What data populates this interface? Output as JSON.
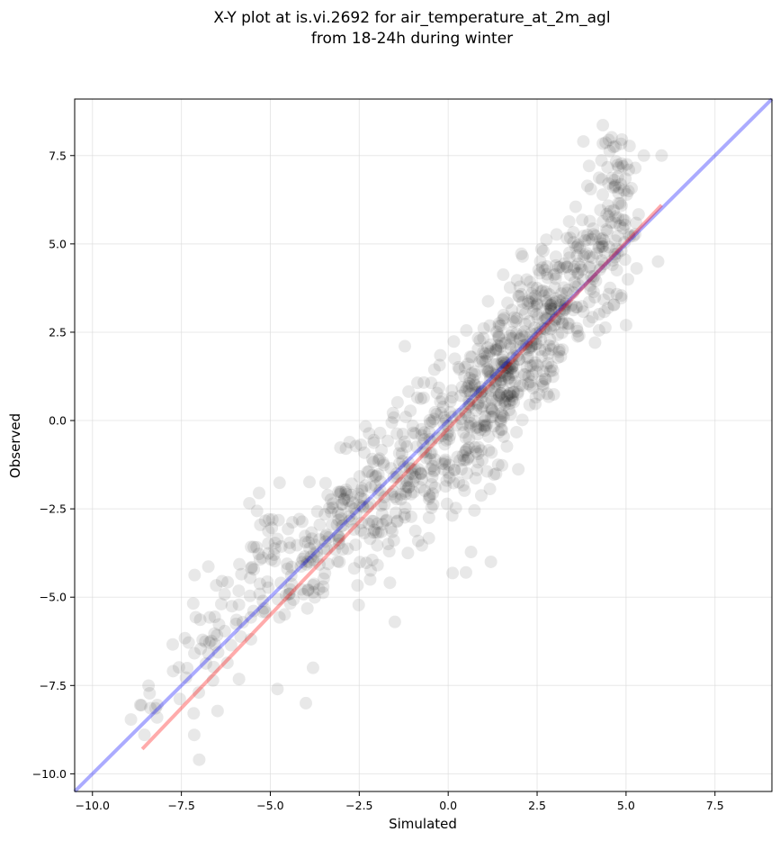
{
  "chart_data": {
    "type": "scatter",
    "title_line1": "X-Y plot at is.vi.2692 for air_temperature_at_2m_agl",
    "title_line2": "from 18-24h during winter",
    "xlabel": "Simulated",
    "ylabel": "Observed",
    "xlim": [
      -10.5,
      9.1
    ],
    "ylim": [
      -10.5,
      9.1
    ],
    "x_ticks": [
      -10.0,
      -7.5,
      -5.0,
      -2.5,
      0.0,
      2.5,
      5.0,
      7.5
    ],
    "y_ticks": [
      -10.0,
      -7.5,
      -5.0,
      -2.5,
      0.0,
      2.5,
      5.0,
      7.5
    ],
    "x_tick_labels": [
      "−10.0",
      "−7.5",
      "−5.0",
      "−2.5",
      "0.0",
      "2.5",
      "5.0",
      "7.5"
    ],
    "y_tick_labels": [
      "−10.0",
      "−7.5",
      "−5.0",
      "−2.5",
      "0.0",
      "2.5",
      "5.0",
      "7.5"
    ],
    "grid": true,
    "point_color": "#000000",
    "point_alpha": 0.09,
    "identity_line": {
      "color": "#0000ff",
      "alpha": 0.33,
      "from": [
        -10.5,
        -10.5
      ],
      "to": [
        9.1,
        9.1
      ]
    },
    "fit_line": {
      "color": "#ff0000",
      "alpha": 0.33,
      "from": [
        -8.6,
        -9.3
      ],
      "to": [
        6.0,
        6.1
      ]
    },
    "clusters": [
      {
        "cx": -8.3,
        "cy": -8.2,
        "n": 10,
        "sx": 0.3,
        "sy": 0.5
      },
      {
        "cx": -7.0,
        "cy": -6.8,
        "n": 25,
        "sx": 0.45,
        "sy": 0.8
      },
      {
        "cx": -6.2,
        "cy": -5.5,
        "n": 30,
        "sx": 0.45,
        "sy": 0.9
      },
      {
        "cx": -5.0,
        "cy": -4.3,
        "n": 45,
        "sx": 0.5,
        "sy": 0.9
      },
      {
        "cx": -4.0,
        "cy": -3.8,
        "n": 55,
        "sx": 0.5,
        "sy": 0.9
      },
      {
        "cx": -3.0,
        "cy": -2.8,
        "n": 65,
        "sx": 0.5,
        "sy": 0.9
      },
      {
        "cx": -2.0,
        "cy": -2.0,
        "n": 75,
        "sx": 0.5,
        "sy": 0.95
      },
      {
        "cx": -1.0,
        "cy": -1.5,
        "n": 80,
        "sx": 0.5,
        "sy": 1.1
      },
      {
        "cx": 0.0,
        "cy": -0.7,
        "n": 90,
        "sx": 0.5,
        "sy": 1.2
      },
      {
        "cx": 0.9,
        "cy": 0.3,
        "n": 110,
        "sx": 0.45,
        "sy": 1.0
      },
      {
        "cx": 1.6,
        "cy": 1.3,
        "n": 130,
        "sx": 0.45,
        "sy": 0.9
      },
      {
        "cx": 2.3,
        "cy": 2.4,
        "n": 110,
        "sx": 0.45,
        "sy": 0.9
      },
      {
        "cx": 3.1,
        "cy": 3.4,
        "n": 85,
        "sx": 0.5,
        "sy": 0.9
      },
      {
        "cx": 3.9,
        "cy": 4.3,
        "n": 70,
        "sx": 0.45,
        "sy": 0.8
      },
      {
        "cx": 4.6,
        "cy": 5.3,
        "n": 55,
        "sx": 0.4,
        "sy": 0.85
      },
      {
        "cx": 4.9,
        "cy": 6.9,
        "n": 40,
        "sx": 0.4,
        "sy": 0.7
      }
    ],
    "outliers": [
      [
        -7.0,
        -9.6
      ],
      [
        -4.0,
        -8.0
      ],
      [
        -3.8,
        -7.0
      ],
      [
        5.0,
        2.7
      ],
      [
        5.9,
        4.5
      ],
      [
        -4.8,
        -7.6
      ],
      [
        5.5,
        7.5
      ],
      [
        6.0,
        7.5
      ],
      [
        3.8,
        7.9
      ],
      [
        -1.5,
        -5.7
      ],
      [
        0.5,
        -4.3
      ],
      [
        1.2,
        -4.0
      ]
    ]
  }
}
